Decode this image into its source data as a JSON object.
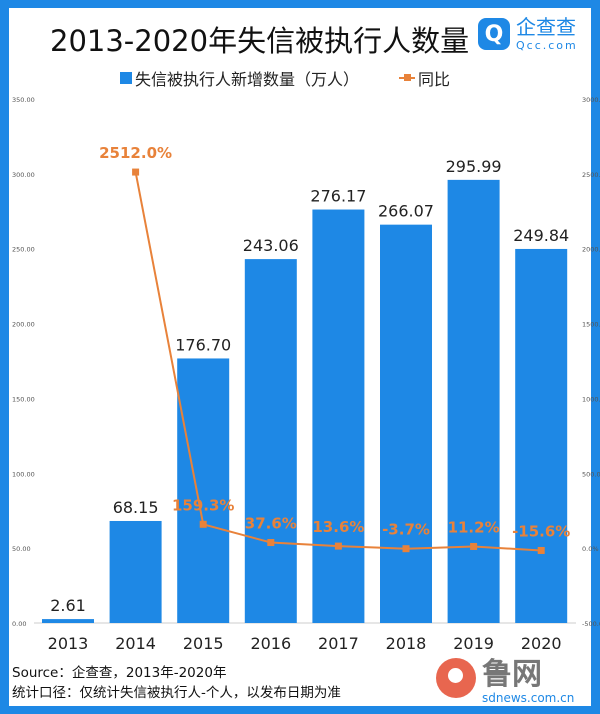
{
  "title": "2013-2020年失信被执行人数量",
  "logo": {
    "cn": "企查查",
    "en": "Qcc.com",
    "mark": "Q"
  },
  "legend": {
    "bar": "失信被执行人新增数量（万人）",
    "line": "同比"
  },
  "footer": {
    "source": "Source：企查查，2013年-2020年",
    "note": "统计口径：仅统计失信被执行人-个人，以发布日期为准"
  },
  "watermark": {
    "text": "鲁网",
    "url": "sdnews.com.cn"
  },
  "colors": {
    "bar": "#1e88e5",
    "line": "#e8823a"
  },
  "chart_data": {
    "type": "bar+line",
    "title": "2013-2020年失信被执行人数量",
    "categories": [
      "2013",
      "2014",
      "2015",
      "2016",
      "2017",
      "2018",
      "2019",
      "2020"
    ],
    "series": [
      {
        "name": "失信被执行人新增数量（万人）",
        "type": "bar",
        "axis": "left",
        "values": [
          2.61,
          68.15,
          176.7,
          243.06,
          276.17,
          266.07,
          295.99,
          249.84
        ],
        "labels": [
          "2.61",
          "68.15",
          "176.70",
          "243.06",
          "276.17",
          "266.07",
          "295.99",
          "249.84"
        ]
      },
      {
        "name": "同比",
        "type": "line",
        "axis": "right",
        "values": [
          null,
          2512.0,
          159.3,
          37.6,
          13.6,
          -3.7,
          11.2,
          -15.6
        ],
        "labels": [
          "",
          "2512.0%",
          "159.3%",
          "37.6%",
          "13.6%",
          "-3.7%",
          "11.2%",
          "-15.6%"
        ]
      }
    ],
    "left_axis": {
      "ylim": [
        0,
        350
      ],
      "ticks": [
        "0.00",
        "50.00",
        "100.00",
        "150.00",
        "200.00",
        "250.00",
        "300.00",
        "350.00"
      ]
    },
    "right_axis": {
      "ylim": [
        -500,
        3000
      ],
      "ticks": [
        "-500.0%",
        "0.0%",
        "500.0%",
        "1000.0%",
        "1500.0%",
        "2000.0%",
        "2500.0%",
        "3000.0%"
      ]
    },
    "legend_position": "top"
  }
}
